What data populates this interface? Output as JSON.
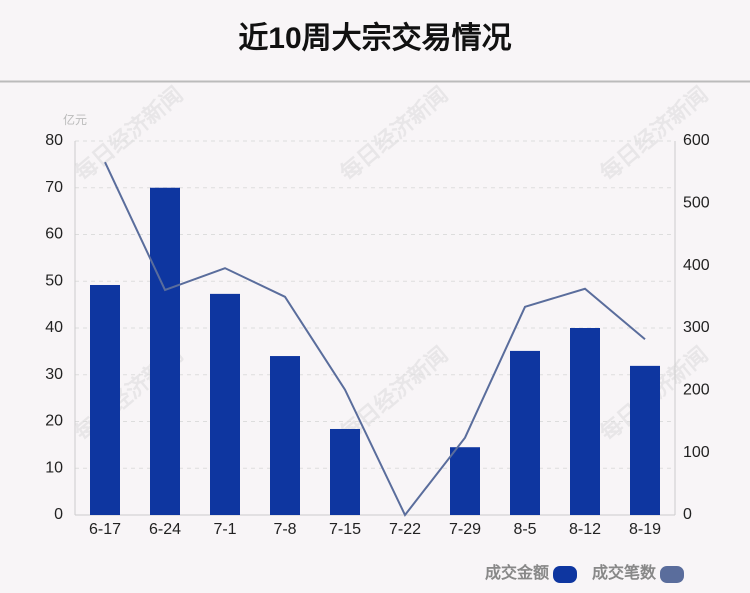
{
  "chart_data": {
    "type": "bar-line",
    "title": "近10周大宗交易情况",
    "y_unit": "亿元",
    "watermark": "每日经济新闻",
    "categories": [
      "6-17",
      "6-24",
      "7-1",
      "7-8",
      "7-15",
      "7-22",
      "7-29",
      "8-5",
      "8-12",
      "8-19"
    ],
    "series": [
      {
        "name": "成交金额",
        "color": "#0e36a0",
        "values": [
          49.2,
          70,
          47.3,
          34,
          18.4,
          0,
          14.5,
          35.1,
          40,
          31.9
        ]
      },
      {
        "name": "成交笔数",
        "color": "#5a6d9c",
        "axis": "y2",
        "values": [
          566,
          361,
          396,
          350,
          201,
          0,
          124,
          334,
          363,
          282
        ]
      }
    ],
    "ylim": [
      0,
      80
    ],
    "yticks": [
      0,
      10,
      20,
      30,
      40,
      50,
      60,
      70,
      80
    ],
    "y2lim": [
      0,
      600
    ],
    "y2ticks": [
      0,
      100,
      200,
      300,
      400,
      500,
      600
    ],
    "grid": true,
    "legend": "bottom-right"
  }
}
